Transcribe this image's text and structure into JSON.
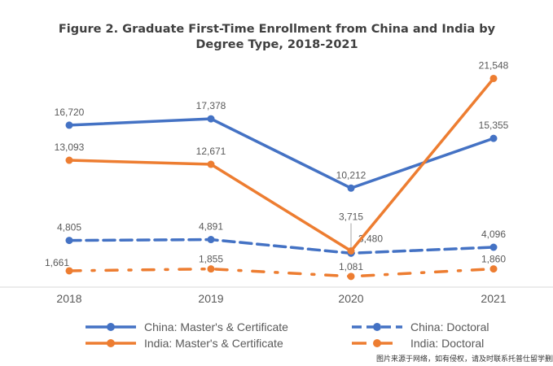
{
  "chart_data": {
    "type": "line",
    "title": "Figure 2. Graduate First-Time Enrollment from China and India by Degree Type, 2018-2021",
    "title_lines": [
      "Figure 2. Graduate First-Time Enrollment from China and India by",
      "Degree Type, 2018-2021"
    ],
    "categories": [
      "2018",
      "2019",
      "2020",
      "2021"
    ],
    "legend_position": "bottom",
    "grid": false,
    "series": [
      {
        "name": "China: Master's & Certificate",
        "values": [
          16720,
          17378,
          10212,
          15355
        ],
        "labels": [
          "16,720",
          "17,378",
          "10,212",
          "15,355"
        ],
        "color": "#4472C4",
        "style": "solid"
      },
      {
        "name": "China: Doctoral",
        "values": [
          4805,
          4891,
          3480,
          4096
        ],
        "labels": [
          "4,805",
          "4,891",
          "3,480",
          "4,096"
        ],
        "color": "#4472C4",
        "style": "dash"
      },
      {
        "name": "India: Master's & Certificate",
        "values": [
          13093,
          12671,
          3715,
          21548
        ],
        "labels": [
          "13,093",
          "12,671",
          "3,715",
          "21,548"
        ],
        "color": "#ED7D31",
        "style": "solid"
      },
      {
        "name": "India: Doctoral",
        "values": [
          1661,
          1855,
          1081,
          1860
        ],
        "labels": [
          "1,661",
          "1,855",
          "1,081",
          "1,860"
        ],
        "color": "#ED7D31",
        "style": "dashdot"
      }
    ]
  },
  "watermark": "图片来源于网络，如有侵权，请及时联系托普仕留学删除"
}
